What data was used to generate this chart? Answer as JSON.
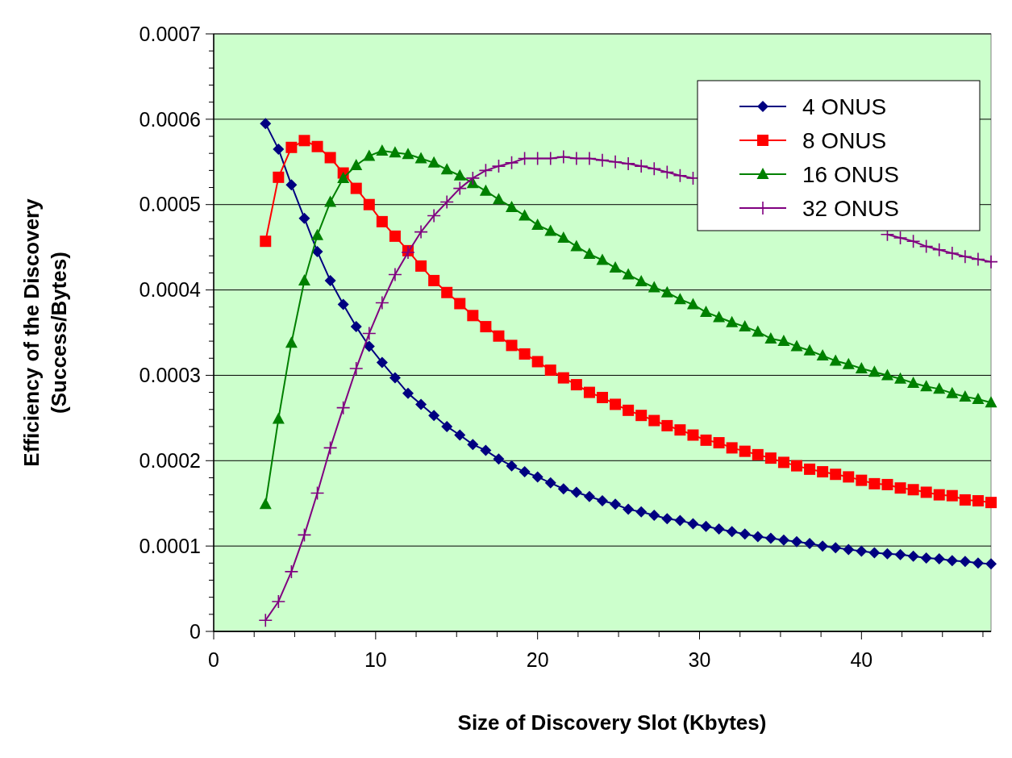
{
  "chart_data": {
    "type": "line",
    "xlabel": "Size of Discovery Slot (Kbytes)",
    "ylabel": "Efficiency of the Discovery\n(Success/Bytes)",
    "xlim": [
      0,
      48
    ],
    "ylim": [
      0,
      0.0007
    ],
    "xticks": [
      0,
      {
        "value": 2.5,
        "label": null
      },
      {
        "value": 5,
        "label": null
      },
      {
        "value": 7.5,
        "label": null
      },
      10,
      {
        "value": 12.5,
        "label": null
      },
      {
        "value": 15,
        "label": null
      },
      {
        "value": 17.5,
        "label": null
      },
      20,
      {
        "value": 22.5,
        "label": null
      },
      {
        "value": 25,
        "label": null
      },
      {
        "value": 27.5,
        "label": null
      },
      30,
      {
        "value": 32.5,
        "label": null
      },
      {
        "value": 35,
        "label": null
      },
      {
        "value": 37.5,
        "label": null
      },
      40,
      {
        "value": 42.5,
        "label": null
      },
      {
        "value": 45,
        "label": null
      },
      {
        "value": 47.5,
        "label": null
      }
    ],
    "yticks": [
      0,
      {
        "value": 2e-05,
        "label": null
      },
      {
        "value": 4e-05,
        "label": null
      },
      {
        "value": 6e-05,
        "label": null
      },
      {
        "value": 8e-05,
        "label": null
      },
      0.0001,
      {
        "value": 0.00012,
        "label": null
      },
      {
        "value": 0.00014,
        "label": null
      },
      {
        "value": 0.00016,
        "label": null
      },
      {
        "value": 0.00018,
        "label": null
      },
      0.0002,
      {
        "value": 0.00022,
        "label": null
      },
      {
        "value": 0.00024,
        "label": null
      },
      {
        "value": 0.00026,
        "label": null
      },
      {
        "value": 0.00028,
        "label": null
      },
      0.0003,
      {
        "value": 0.00032,
        "label": null
      },
      {
        "value": 0.00034,
        "label": null
      },
      {
        "value": 0.00036,
        "label": null
      },
      {
        "value": 0.00038,
        "label": null
      },
      0.0004,
      {
        "value": 0.00042,
        "label": null
      },
      {
        "value": 0.00044,
        "label": null
      },
      {
        "value": 0.00046,
        "label": null
      },
      {
        "value": 0.00048,
        "label": null
      },
      0.0005,
      {
        "value": 0.00052,
        "label": null
      },
      {
        "value": 0.00054,
        "label": null
      },
      {
        "value": 0.00056,
        "label": null
      },
      {
        "value": 0.00058,
        "label": null
      },
      0.0006,
      {
        "value": 0.00062,
        "label": null
      },
      {
        "value": 0.00064,
        "label": null
      },
      {
        "value": 0.00066,
        "label": null
      },
      {
        "value": 0.00068,
        "label": null
      },
      0.0007
    ],
    "grid": "y",
    "legend": "top right",
    "x": [
      3.2,
      4,
      4.8,
      5.6,
      6.4,
      7.2,
      8,
      8.8,
      9.6,
      10.4,
      11.2,
      12,
      12.8,
      13.6,
      14.4,
      15.2,
      16,
      16.8,
      17.6,
      18.4,
      19.2,
      20,
      20.8,
      21.6,
      22.4,
      23.2,
      24,
      24.8,
      25.6,
      26.4,
      27.2,
      28,
      28.8,
      29.6,
      30.4,
      31.2,
      32,
      32.8,
      33.6,
      34.4,
      35.2,
      36,
      36.8,
      37.6,
      38.4,
      39.2,
      40,
      40.8,
      41.6,
      42.4,
      43.2,
      44,
      44.8,
      45.6,
      46.4,
      47.2,
      48
    ],
    "series": [
      {
        "name": "4 ONUS",
        "color": "#000080",
        "marker": "diamond",
        "values": [
          0.000595,
          0.000565,
          0.000523,
          0.000484,
          0.000445,
          0.000411,
          0.000383,
          0.000357,
          0.000334,
          0.000315,
          0.000297,
          0.000279,
          0.000266,
          0.000253,
          0.00024,
          0.00023,
          0.000219,
          0.000212,
          0.000202,
          0.000194,
          0.000187,
          0.000181,
          0.000174,
          0.000167,
          0.000163,
          0.000158,
          0.000153,
          0.000149,
          0.000143,
          0.00014,
          0.000136,
          0.000132,
          0.00013,
          0.000126,
          0.000123,
          0.00012,
          0.000117,
          0.000114,
          0.000111,
          0.000109,
          0.000107,
          0.000105,
          0.000103,
          0.0001,
          9.8e-05,
          9.6e-05,
          9.4e-05,
          9.2e-05,
          9.1e-05,
          9e-05,
          8.8e-05,
          8.6e-05,
          8.5e-05,
          8.3e-05,
          8.2e-05,
          8e-05,
          7.9e-05
        ]
      },
      {
        "name": "8 ONUS",
        "color": "#ff0000",
        "marker": "square",
        "values": [
          0.000457,
          0.000532,
          0.000567,
          0.000575,
          0.000568,
          0.000555,
          0.000537,
          0.000519,
          0.0005,
          0.00048,
          0.000463,
          0.000446,
          0.000428,
          0.000411,
          0.000397,
          0.000384,
          0.00037,
          0.000357,
          0.000346,
          0.000335,
          0.000325,
          0.000316,
          0.000306,
          0.000297,
          0.000289,
          0.00028,
          0.000274,
          0.000266,
          0.000259,
          0.000253,
          0.000247,
          0.000241,
          0.000236,
          0.00023,
          0.000224,
          0.000221,
          0.000215,
          0.000211,
          0.000207,
          0.000203,
          0.000198,
          0.000194,
          0.00019,
          0.000187,
          0.000184,
          0.000181,
          0.000177,
          0.000173,
          0.000172,
          0.000168,
          0.000166,
          0.000163,
          0.00016,
          0.000159,
          0.000154,
          0.000153,
          0.000151
        ]
      },
      {
        "name": "16 ONUS",
        "color": "#008000",
        "marker": "triangle",
        "values": [
          0.000149,
          0.000249,
          0.000338,
          0.000411,
          0.000464,
          0.000503,
          0.000531,
          0.000546,
          0.000557,
          0.000563,
          0.000561,
          0.000559,
          0.000554,
          0.000549,
          0.000541,
          0.000534,
          0.000525,
          0.000516,
          0.000506,
          0.000497,
          0.000487,
          0.000476,
          0.000469,
          0.000461,
          0.000451,
          0.000442,
          0.000435,
          0.000426,
          0.000418,
          0.00041,
          0.000403,
          0.000397,
          0.000389,
          0.000383,
          0.000374,
          0.000368,
          0.000362,
          0.000357,
          0.000351,
          0.000343,
          0.00034,
          0.000334,
          0.000329,
          0.000323,
          0.000317,
          0.000313,
          0.000308,
          0.000304,
          0.0003,
          0.000296,
          0.000291,
          0.000287,
          0.000284,
          0.000279,
          0.000275,
          0.000272,
          0.000268
        ]
      },
      {
        "name": "32 ONUS",
        "color": "#800080",
        "marker": "cross",
        "values": [
          1.3e-05,
          3.5e-05,
          7e-05,
          0.000113,
          0.000162,
          0.000215,
          0.000262,
          0.000308,
          0.000349,
          0.000385,
          0.000418,
          0.000444,
          0.000468,
          0.000487,
          0.000503,
          0.000519,
          0.000531,
          0.00054,
          0.000545,
          0.000549,
          0.000554,
          0.000554,
          0.000554,
          0.000556,
          0.000554,
          0.000554,
          0.000552,
          0.00055,
          0.000548,
          0.000545,
          0.000542,
          0.000538,
          0.000534,
          0.000531,
          null,
          null,
          null,
          null,
          null,
          null,
          null,
          null,
          null,
          null,
          null,
          null,
          null,
          null,
          0.000465,
          0.000461,
          0.000457,
          0.000451,
          0.000447,
          0.000443,
          0.000439,
          0.000436,
          0.000433
        ]
      }
    ]
  }
}
